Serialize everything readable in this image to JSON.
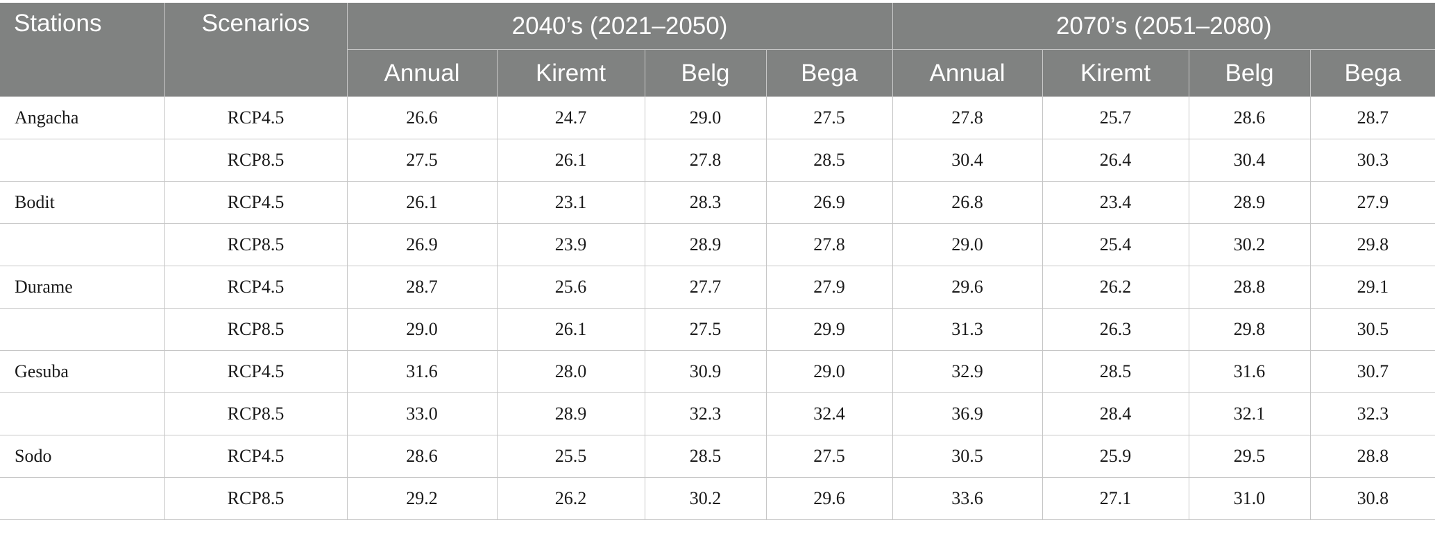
{
  "table": {
    "headers": {
      "stations": "Stations",
      "scenarios": "Scenarios",
      "periods": [
        "2040’s (2021–2050)",
        "2070’s (2051–2080)"
      ],
      "seasons": [
        "Annual",
        "Kiremt",
        "Belg",
        "Bega",
        "Annual",
        "Kiremt",
        "Belg",
        "Bega"
      ]
    },
    "rows": [
      {
        "station": "Angacha",
        "scenario": "RCP4.5",
        "values": [
          "26.6",
          "24.7",
          "29.0",
          "27.5",
          "27.8",
          "25.7",
          "28.6",
          "28.7"
        ]
      },
      {
        "station": "",
        "scenario": "RCP8.5",
        "values": [
          "27.5",
          "26.1",
          "27.8",
          "28.5",
          "30.4",
          "26.4",
          "30.4",
          "30.3"
        ]
      },
      {
        "station": "Bodit",
        "scenario": "RCP4.5",
        "values": [
          "26.1",
          "23.1",
          "28.3",
          "26.9",
          "26.8",
          "23.4",
          "28.9",
          "27.9"
        ]
      },
      {
        "station": "",
        "scenario": "RCP8.5",
        "values": [
          "26.9",
          "23.9",
          "28.9",
          "27.8",
          "29.0",
          "25.4",
          "30.2",
          "29.8"
        ]
      },
      {
        "station": "Durame",
        "scenario": "RCP4.5",
        "values": [
          "28.7",
          "25.6",
          "27.7",
          "27.9",
          "29.6",
          "26.2",
          "28.8",
          "29.1"
        ]
      },
      {
        "station": "",
        "scenario": "RCP8.5",
        "values": [
          "29.0",
          "26.1",
          "27.5",
          "29.9",
          "31.3",
          "26.3",
          "29.8",
          "30.5"
        ]
      },
      {
        "station": "Gesuba",
        "scenario": "RCP4.5",
        "values": [
          "31.6",
          "28.0",
          "30.9",
          "29.0",
          "32.9",
          "28.5",
          "31.6",
          "30.7"
        ]
      },
      {
        "station": "",
        "scenario": "RCP8.5",
        "values": [
          "33.0",
          "28.9",
          "32.3",
          "32.4",
          "36.9",
          "28.4",
          "32.1",
          "32.3"
        ]
      },
      {
        "station": "Sodo",
        "scenario": "RCP4.5",
        "values": [
          "28.6",
          "25.5",
          "28.5",
          "27.5",
          "30.5",
          "25.9",
          "29.5",
          "28.8"
        ]
      },
      {
        "station": "",
        "scenario": "RCP8.5",
        "values": [
          "29.2",
          "26.2",
          "30.2",
          "29.6",
          "33.6",
          "27.1",
          "31.0",
          "30.8"
        ]
      }
    ]
  }
}
